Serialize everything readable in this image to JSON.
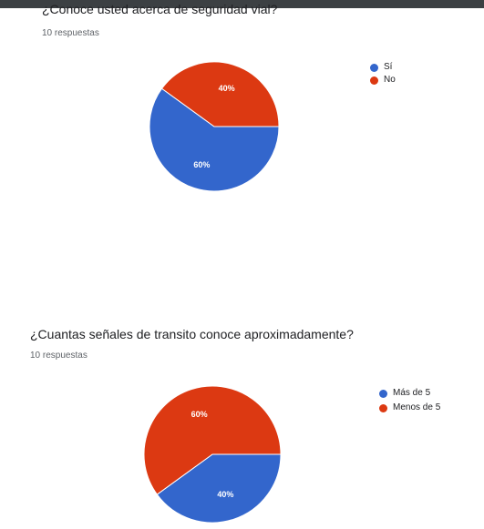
{
  "questions": [
    {
      "title": "¿Conoce usted acerca de seguridad vial?",
      "responses": "10 respuestas",
      "legend": [
        {
          "label": "Sí",
          "color": "#3366cc"
        },
        {
          "label": "No",
          "color": "#dc3912"
        }
      ]
    },
    {
      "title": "¿Cuantas señales de transito conoce aproximadamente?",
      "responses": "10 respuestas",
      "legend": [
        {
          "label": "Más de 5",
          "color": "#3366cc"
        },
        {
          "label": "Menos de 5",
          "color": "#dc3912"
        }
      ]
    }
  ],
  "chart_data": [
    {
      "type": "pie",
      "title": "¿Conoce usted acerca de seguridad vial?",
      "categories": [
        "Sí",
        "No"
      ],
      "values": [
        60,
        40
      ],
      "value_labels": [
        "60%",
        "40%"
      ],
      "colors": [
        "#3366cc",
        "#dc3912"
      ],
      "legend_position": "top-right"
    },
    {
      "type": "pie",
      "title": "¿Cuantas señales de transito conoce aproximadamente?",
      "categories": [
        "Más de 5",
        "Menos de 5"
      ],
      "values": [
        40,
        60
      ],
      "value_labels": [
        "40%",
        "60%"
      ],
      "colors": [
        "#3366cc",
        "#dc3912"
      ],
      "legend_position": "top-right"
    }
  ]
}
